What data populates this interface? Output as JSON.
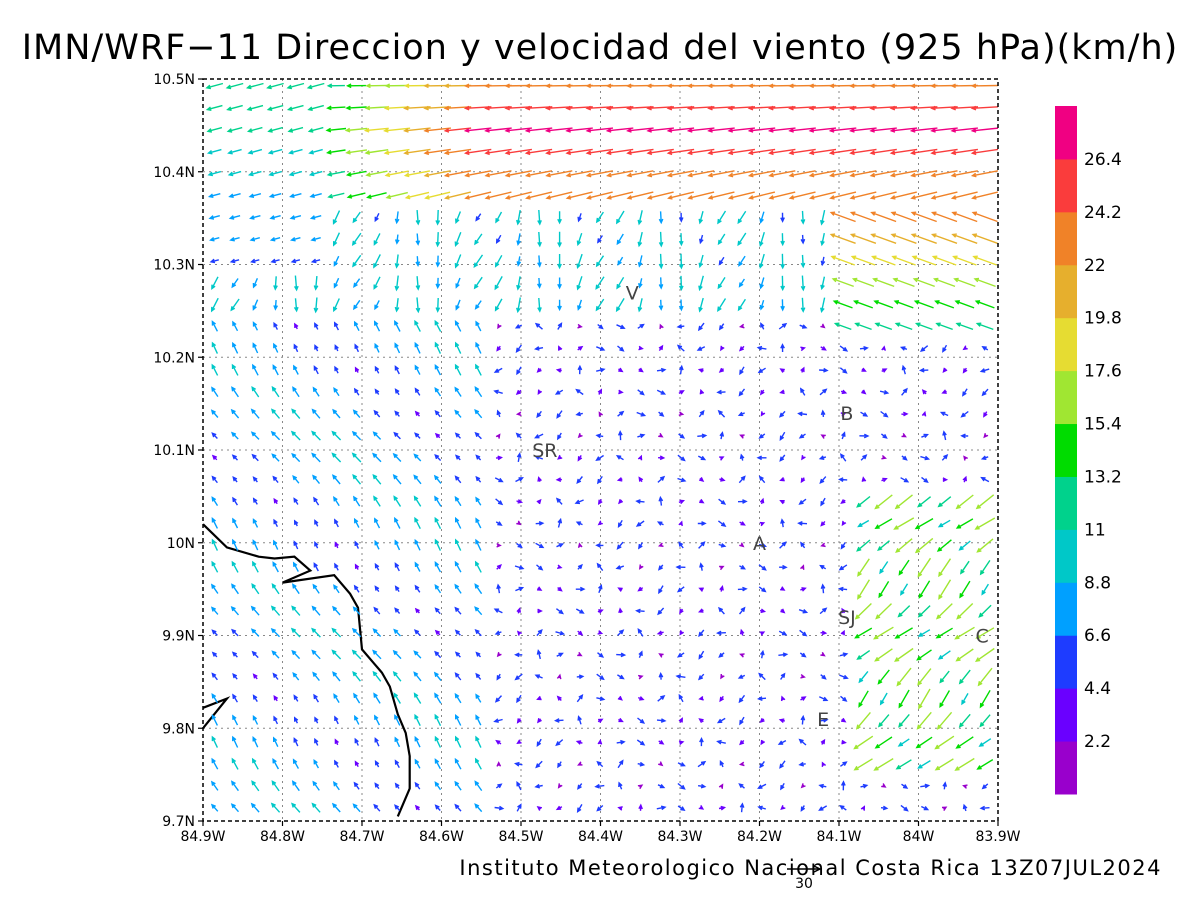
{
  "title": "IMN/WRF−11 Direccion y velocidad del viento (925 hPa)(km/h)",
  "footer": "Instituto Meteorologico Nacional Costa Rica 13Z07JUL2024",
  "reference_vector": {
    "label": "30",
    "speed": 30
  },
  "chart_data": {
    "type": "vector-field",
    "variable": "Direccion y velocidad del viento",
    "level": "925 hPa",
    "units": "km/h",
    "valid_time": "13Z07JUL2024",
    "x_range": [
      -84.9,
      -83.9
    ],
    "y_range": [
      9.7,
      10.5
    ],
    "x_ticks": [
      {
        "value": -84.9,
        "label": "84.9W"
      },
      {
        "value": -84.8,
        "label": "84.8W"
      },
      {
        "value": -84.7,
        "label": "84.7W"
      },
      {
        "value": -84.6,
        "label": "84.6W"
      },
      {
        "value": -84.5,
        "label": "84.5W"
      },
      {
        "value": -84.4,
        "label": "84.4W"
      },
      {
        "value": -84.3,
        "label": "84.3W"
      },
      {
        "value": -84.2,
        "label": "84.2W"
      },
      {
        "value": -84.1,
        "label": "84.1W"
      },
      {
        "value": -84.0,
        "label": "84W"
      },
      {
        "value": -83.9,
        "label": "83.9W"
      }
    ],
    "y_ticks": [
      {
        "value": 9.7,
        "label": "9.7N"
      },
      {
        "value": 9.8,
        "label": "9.8N"
      },
      {
        "value": 9.9,
        "label": "9.9N"
      },
      {
        "value": 10.0,
        "label": "10N"
      },
      {
        "value": 10.1,
        "label": "10.1N"
      },
      {
        "value": 10.2,
        "label": "10.2N"
      },
      {
        "value": 10.3,
        "label": "10.3N"
      },
      {
        "value": 10.4,
        "label": "10.4N"
      },
      {
        "value": 10.5,
        "label": "10.5N"
      }
    ],
    "grid": true,
    "colorbar": {
      "labels": [
        "2.2",
        "4.4",
        "6.6",
        "8.8",
        "11",
        "13.2",
        "15.4",
        "17.6",
        "19.8",
        "22",
        "24.2",
        "26.4"
      ],
      "colors": [
        "#9900cc",
        "#6a00ff",
        "#1e3cff",
        "#00a0ff",
        "#00c8c8",
        "#00d28c",
        "#00dc00",
        "#a0e632",
        "#e6dc32",
        "#e6af2d",
        "#f08228",
        "#fa3c3c",
        "#f00082"
      ]
    },
    "places": [
      {
        "label": "V",
        "lon": -84.36,
        "lat": 10.27
      },
      {
        "label": "B",
        "lon": -84.09,
        "lat": 10.14
      },
      {
        "label": "SR",
        "lon": -84.47,
        "lat": 10.1
      },
      {
        "label": "A",
        "lon": -84.2,
        "lat": 10.0
      },
      {
        "label": "SJ",
        "lon": -84.09,
        "lat": 9.92
      },
      {
        "label": "C",
        "lon": -83.92,
        "lat": 9.9
      },
      {
        "label": "E",
        "lon": -84.12,
        "lat": 9.81
      }
    ],
    "coastline": [
      [
        -84.9,
        10.02
      ],
      [
        -84.87,
        9.995
      ],
      [
        -84.83,
        9.985
      ],
      [
        -84.81,
        9.983
      ],
      [
        -84.785,
        9.985
      ],
      [
        -84.765,
        9.97
      ],
      [
        -84.8,
        9.957
      ],
      [
        -84.735,
        9.965
      ],
      [
        -84.715,
        9.945
      ],
      [
        -84.705,
        9.93
      ],
      [
        -84.7,
        9.885
      ],
      [
        -84.685,
        9.87
      ],
      [
        -84.675,
        9.86
      ],
      [
        -84.665,
        9.845
      ],
      [
        -84.655,
        9.815
      ],
      [
        -84.645,
        9.795
      ],
      [
        -84.64,
        9.77
      ],
      [
        -84.64,
        9.735
      ],
      [
        -84.655,
        9.705
      ]
    ],
    "coastline_islet": [
      [
        -84.9,
        9.822
      ],
      [
        -84.87,
        9.832
      ],
      [
        -84.9,
        9.8
      ]
    ],
    "wind_regions": [
      {
        "name": "northern jet rows",
        "lat_range": [
          10.37,
          10.49
        ],
        "lon_range": [
          -84.75,
          -83.9
        ],
        "direction": "from east",
        "speed_range": [
          19.8,
          28
        ]
      },
      {
        "name": "northwest corner",
        "lat_range": [
          10.3,
          10.5
        ],
        "lon_range": [
          -84.9,
          -84.75
        ],
        "direction": "from east-northeast",
        "speed_range": [
          4.4,
          15.4
        ]
      },
      {
        "name": "northern valley",
        "lat_range": [
          10.25,
          10.35
        ],
        "lon_range": [
          -84.75,
          -84.1
        ],
        "direction": "from north-northeast",
        "speed_range": [
          4.4,
          17.6
        ]
      },
      {
        "name": "northeast",
        "lat_range": [
          10.22,
          10.32
        ],
        "lon_range": [
          -84.1,
          -83.9
        ],
        "direction": "from east-southeast",
        "speed_range": [
          11,
          24.2
        ]
      },
      {
        "name": "western lowlands",
        "lat_range": [
          9.7,
          10.22
        ],
        "lon_range": [
          -84.9,
          -84.55
        ],
        "direction": "from southeast",
        "speed_range": [
          2.2,
          11
        ]
      },
      {
        "name": "central plateau",
        "lat_range": [
          9.8,
          10.22
        ],
        "lon_range": [
          -84.55,
          -84.1
        ],
        "direction": "variable",
        "speed_range": [
          0,
          8.8
        ]
      },
      {
        "name": "eastern pass",
        "lat_range": [
          9.75,
          10.05
        ],
        "lon_range": [
          -84.08,
          -83.9
        ],
        "direction": "from northeast",
        "speed_range": [
          8.8,
          19.8
        ]
      }
    ]
  }
}
